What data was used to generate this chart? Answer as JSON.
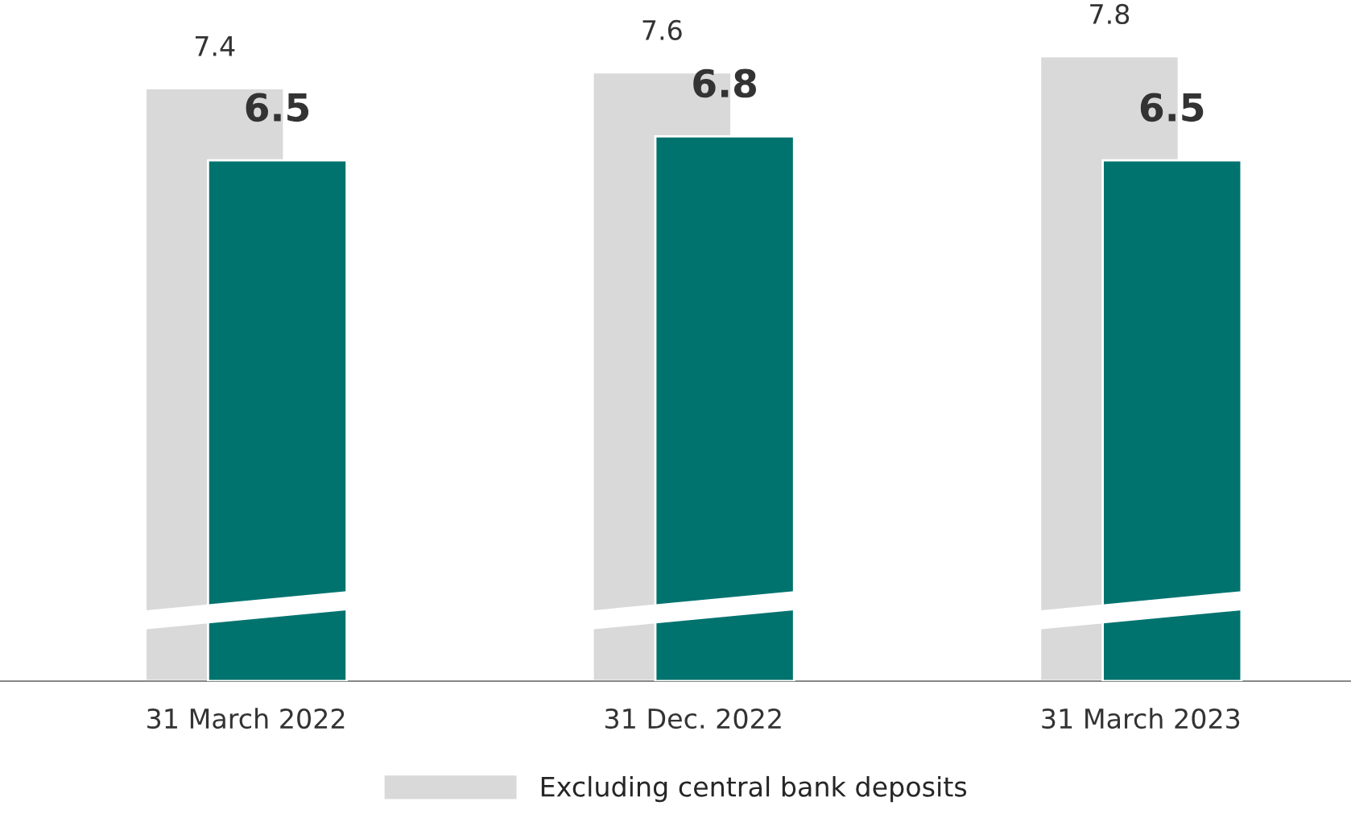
{
  "chart_data": {
    "type": "bar",
    "categories": [
      "31 March 2022",
      "31 Dec. 2022",
      "31 March 2023"
    ],
    "series": [
      {
        "name": "Excluding central bank deposits",
        "color": "#d9d9d9",
        "values": [
          7.4,
          7.6,
          7.8
        ]
      },
      {
        "color": "#00736e",
        "values": [
          6.5,
          6.8,
          6.5
        ]
      }
    ],
    "tick_labels": "x",
    "data_labels": true,
    "legend": "bottom",
    "grid": false
  }
}
